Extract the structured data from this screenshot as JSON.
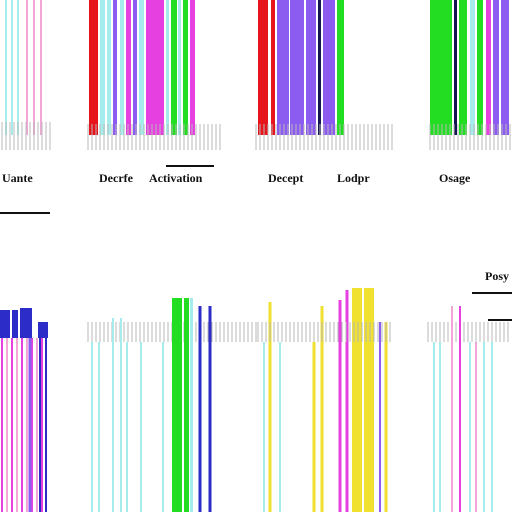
{
  "labels": {
    "uante": "Uante",
    "decrfe": "Decrfe",
    "activation": "Activation",
    "decept": "Decept",
    "lodpr": "Lodpr",
    "osage": "Osage",
    "posy": "Posy"
  },
  "colors": {
    "background": "#ffffff",
    "ink": "#111111",
    "tick": "#b8b8b8",
    "red": "#e8141c",
    "green": "#22dd22",
    "magenta": "#e640e0",
    "violet": "#8c5cf0",
    "blue": "#2c2cc8",
    "cyan": "#a6ecec",
    "pink": "#f2a6d6",
    "yellow": "#f0e030",
    "navy": "#141450"
  }
}
